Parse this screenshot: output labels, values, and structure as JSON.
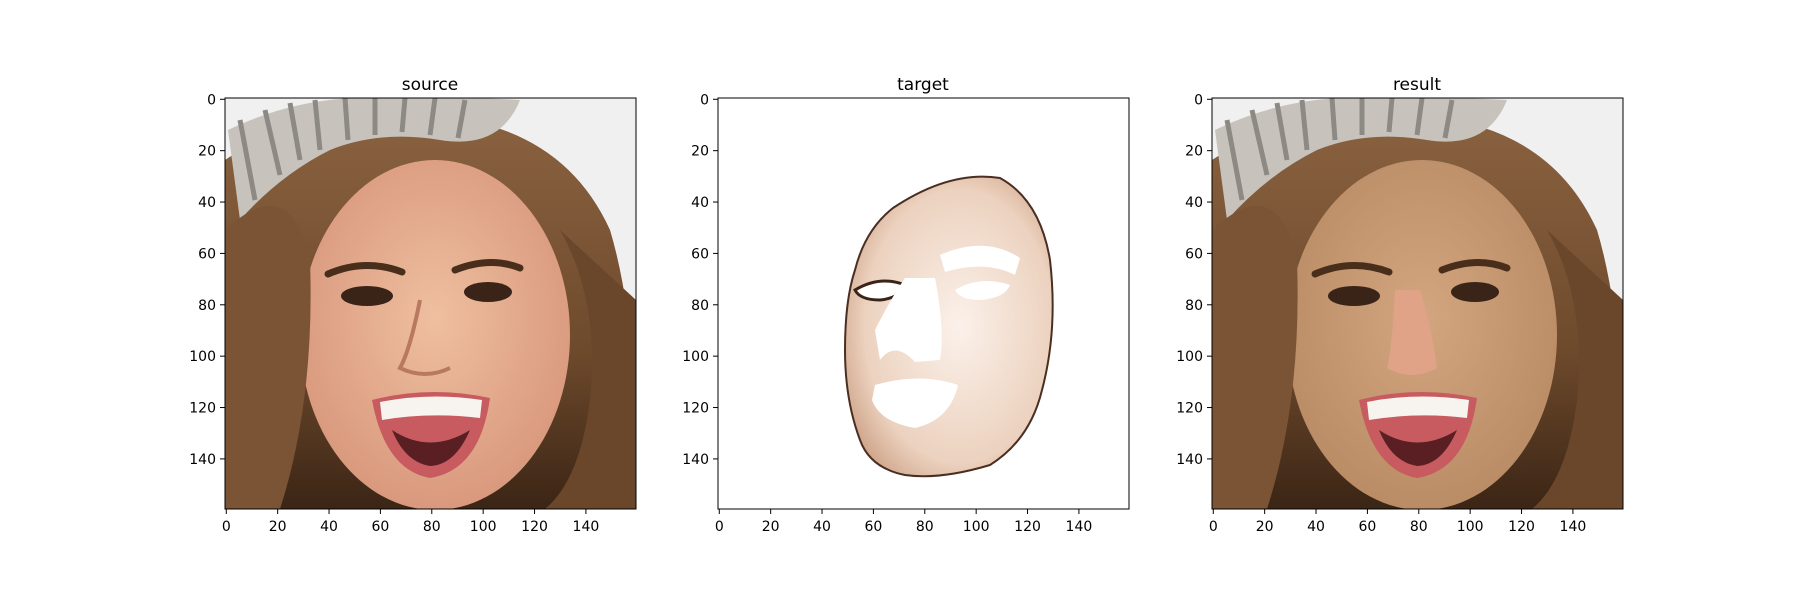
{
  "figure": {
    "panels": [
      {
        "title": "source",
        "image_desc": "close-up photo of a smiling woman with long brown hair wearing a jeweled crown",
        "xticks": [
          "0",
          "20",
          "40",
          "60",
          "80",
          "100",
          "120",
          "140"
        ],
        "yticks": [
          "0",
          "20",
          "40",
          "60",
          "80",
          "100",
          "120",
          "140"
        ]
      },
      {
        "title": "target",
        "image_desc": "isolated face skin region on white background with eyes, nose and mouth areas cut out",
        "xticks": [
          "0",
          "20",
          "40",
          "60",
          "80",
          "100",
          "120",
          "140"
        ],
        "yticks": [
          "0",
          "20",
          "40",
          "60",
          "80",
          "100",
          "120",
          "140"
        ]
      },
      {
        "title": "result",
        "image_desc": "the source photo with the face skin recolored to match the target tone",
        "xticks": [
          "0",
          "20",
          "40",
          "60",
          "80",
          "100",
          "120",
          "140"
        ],
        "yticks": [
          "0",
          "20",
          "40",
          "60",
          "80",
          "100",
          "120",
          "140"
        ]
      }
    ],
    "axis_range": [
      0,
      160
    ],
    "colors": {
      "hair": "#6e4a2c",
      "hair_dark": "#3b2515",
      "skin_source": "#e2a98a",
      "skin_result": "#c89a72",
      "target_skin": "#efd9c8",
      "crown": "#c7c3bc",
      "lips": "#c75b5f",
      "teeth": "#f7f4f0",
      "background": "#f0f0f0"
    }
  }
}
